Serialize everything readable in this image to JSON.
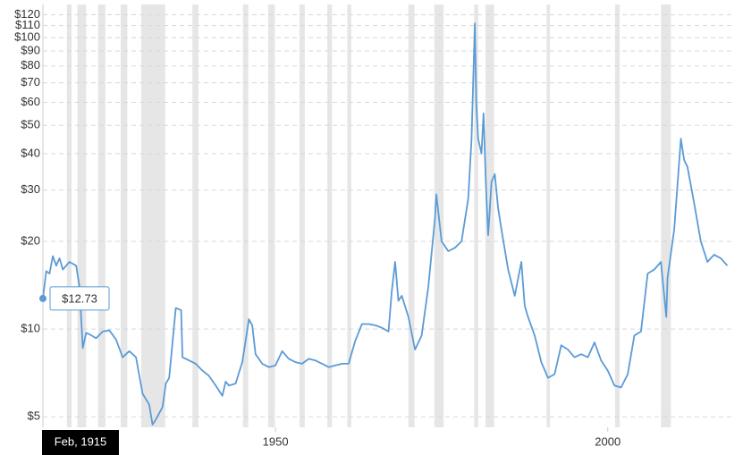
{
  "chart_data": {
    "type": "line",
    "log_scale": true,
    "grid": true,
    "color": "#5b9bd5",
    "recession_color": "#e6e6e6",
    "x": [
      1915,
      1915.5,
      1916,
      1916.5,
      1917,
      1917.5,
      1918,
      1919,
      1920,
      1920.5,
      1921,
      1921.5,
      1922,
      1923,
      1924,
      1925,
      1926,
      1927,
      1928,
      1929,
      1930,
      1931,
      1931.5,
      1932,
      1933,
      1933.5,
      1934,
      1935,
      1935.8,
      1936,
      1937,
      1938,
      1939,
      1940,
      1941,
      1942,
      1942.5,
      1943,
      1944,
      1945,
      1946,
      1946.5,
      1947,
      1948,
      1949,
      1950,
      1951,
      1952,
      1953,
      1954,
      1955,
      1956,
      1957,
      1958,
      1959,
      1960,
      1961,
      1962,
      1963,
      1964,
      1965,
      1966,
      1967,
      1967.5,
      1968,
      1968.5,
      1969,
      1970,
      1971,
      1972,
      1973,
      1974,
      1974.2,
      1975,
      1976,
      1977,
      1978,
      1979,
      1979.5,
      1980,
      1980.2,
      1980.5,
      1981,
      1981.3,
      1981.7,
      1982,
      1982.5,
      1983,
      1983.5,
      1984,
      1985,
      1986,
      1987,
      1987.5,
      1988,
      1989,
      1990,
      1991,
      1992,
      1993,
      1994,
      1995,
      1996,
      1997,
      1998,
      1999,
      2000,
      2001,
      2002,
      2003,
      2004,
      2005,
      2006,
      2007,
      2008,
      2008.8,
      2009,
      2010,
      2011,
      2011.5,
      2012,
      2013,
      2014,
      2015,
      2016,
      2017,
      2018
    ],
    "values": [
      12.73,
      15.8,
      15.5,
      17.8,
      16.5,
      17.5,
      16,
      17,
      16.5,
      14,
      8.6,
      9.7,
      9.6,
      9.3,
      9.8,
      9.9,
      9.2,
      8,
      8.4,
      8,
      6,
      5.5,
      4.7,
      4.9,
      5.4,
      6.5,
      6.8,
      11.8,
      11.6,
      8,
      7.8,
      7.6,
      7.2,
      6.9,
      6.4,
      5.9,
      6.6,
      6.4,
      6.5,
      7.7,
      10.8,
      10.3,
      8.2,
      7.6,
      7.4,
      7.5,
      8.4,
      7.9,
      7.7,
      7.6,
      7.9,
      7.8,
      7.6,
      7.4,
      7.5,
      7.6,
      7.6,
      9.1,
      10.4,
      10.4,
      10.3,
      10.1,
      9.8,
      13.5,
      17,
      12.5,
      13,
      11,
      8.5,
      9.5,
      14,
      24,
      29,
      20,
      18.5,
      19,
      20,
      28,
      45,
      112,
      60,
      45,
      40,
      55,
      30,
      21,
      32,
      34,
      26,
      22,
      16,
      13,
      17,
      12,
      11,
      9.5,
      7.7,
      6.8,
      7,
      8.8,
      8.5,
      8,
      8.2,
      8,
      9,
      7.8,
      7.2,
      6.4,
      6.3,
      7,
      9.5,
      9.8,
      15.5,
      16,
      17,
      11,
      15,
      22,
      45,
      38,
      36,
      27,
      20,
      17,
      18,
      17.5,
      16.5
    ],
    "xlim": [
      1915,
      2018.6
    ],
    "xticks": [
      1950,
      2000
    ],
    "ylim": [
      4.6,
      130
    ],
    "yticks": [
      {
        "value": 5,
        "label": "$5"
      },
      {
        "value": 10,
        "label": "$10"
      },
      {
        "value": 20,
        "label": "$20"
      },
      {
        "value": 30,
        "label": "$30"
      },
      {
        "value": 40,
        "label": "$40"
      },
      {
        "value": 50,
        "label": "$50"
      },
      {
        "value": 60,
        "label": "$60"
      },
      {
        "value": 70,
        "label": "$70"
      },
      {
        "value": 80,
        "label": "$80"
      },
      {
        "value": 90,
        "label": "$90"
      },
      {
        "value": 100,
        "label": "$100"
      },
      {
        "value": 110,
        "label": "$110"
      },
      {
        "value": 120,
        "label": "$120"
      }
    ],
    "recessions": [
      [
        1918.6,
        1919.3
      ],
      [
        1920.2,
        1921.5
      ],
      [
        1923.3,
        1924.4
      ],
      [
        1926.7,
        1927.7
      ],
      [
        1929.8,
        1933.4
      ],
      [
        1937.5,
        1938.4
      ],
      [
        1945.1,
        1945.9
      ],
      [
        1948.9,
        1949.9
      ],
      [
        1953.6,
        1954.4
      ],
      [
        1957.8,
        1958.5
      ],
      [
        1960.8,
        1961.4
      ],
      [
        1970.0,
        1970.9
      ],
      [
        1973.9,
        1975.3
      ],
      [
        1979.9,
        1980.5
      ],
      [
        1981.6,
        1982.9
      ],
      [
        1990.8,
        1991.3
      ],
      [
        2001.1,
        2001.8
      ],
      [
        2008.0,
        2009.5
      ]
    ],
    "tooltip": {
      "value_label": "$12.73",
      "x_label": "Feb, 1915"
    }
  }
}
